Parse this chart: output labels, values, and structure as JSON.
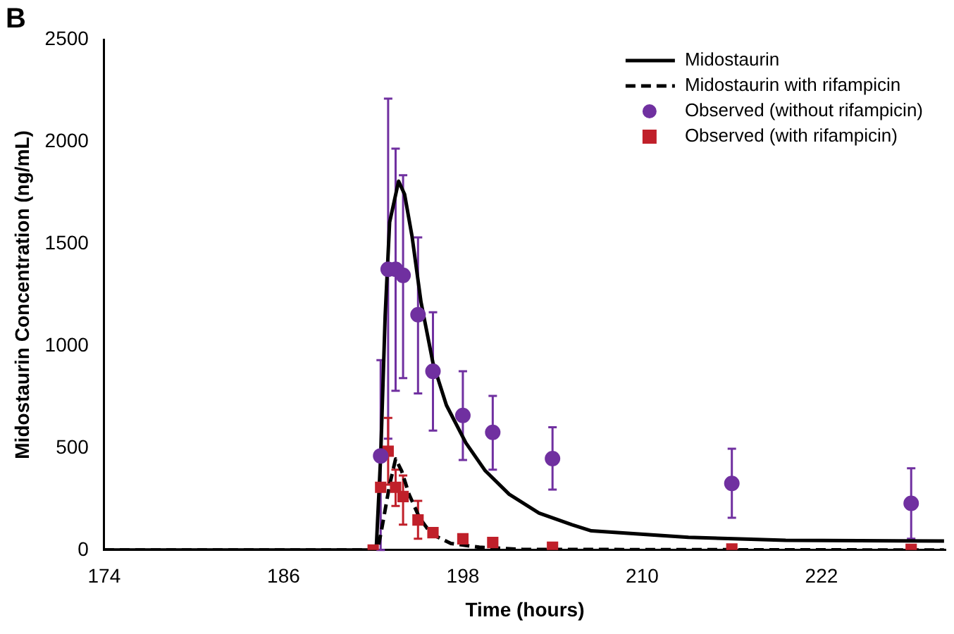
{
  "chart_data": {
    "type": "line",
    "title": "B",
    "xlabel": "Time (hours)",
    "ylabel": "Midostaurin Concentration (ng/mL)",
    "xlim": [
      174,
      230.3
    ],
    "xticks": [
      174,
      186,
      198,
      210,
      222
    ],
    "ylim": [
      0,
      2500
    ],
    "yticks": [
      0,
      500,
      1000,
      1500,
      2000,
      2500
    ],
    "grid": false,
    "legend": "top right",
    "series": [
      {
        "name": "Midostaurin",
        "color": "#000000",
        "line_style": "solid",
        "marker": "none",
        "x": [
          174,
          192.2,
          192.5,
          192.8,
          193.1,
          193.7,
          194.1,
          194.6,
          195.2,
          196.0,
          196.9,
          198.2,
          199.5,
          201.1,
          203.1,
          205.3,
          206.6,
          213.1,
          219.6,
          230.2
        ],
        "values": [
          0,
          0,
          457,
          1145,
          1605,
          1806,
          1742,
          1536,
          1214,
          916,
          709,
          525,
          388,
          273,
          181,
          124,
          94,
          62,
          48,
          44
        ]
      },
      {
        "name": "Midostaurin with rifampicin",
        "color": "#000000",
        "line_style": "dashed",
        "marker": "none",
        "x": [
          174,
          192.3,
          192.6,
          193.1,
          193.5,
          193.9,
          194.4,
          195.1,
          195.9,
          197.2,
          199.1,
          202,
          230.2
        ],
        "values": [
          0,
          0,
          115,
          319,
          446,
          388,
          273,
          158,
          78,
          32,
          14,
          3,
          0
        ]
      },
      {
        "name": "Observed (without rifampicin)",
        "type": "scatter",
        "color": "#7030a0",
        "marker": "circle",
        "x": [
          192.5,
          193,
          193.5,
          194,
          195,
          196,
          198,
          200,
          204,
          216,
          228
        ],
        "values": [
          461,
          1375,
          1375,
          1345,
          1152,
          875,
          659,
          576,
          448,
          326,
          229
        ],
        "errors": [
          [
            0,
            930
          ],
          [
            545,
            2210
          ],
          [
            780,
            1965
          ],
          [
            842,
            1835
          ],
          [
            767,
            1531
          ],
          [
            585,
            1164
          ],
          [
            441,
            875
          ],
          [
            393,
            755
          ],
          [
            296,
            601
          ],
          [
            158,
            496
          ],
          [
            55,
            400
          ]
        ]
      },
      {
        "name": "Observed (with rifampicin)",
        "type": "scatter",
        "color": "#c0202a",
        "marker": "square",
        "x": [
          192,
          192.5,
          193,
          193.5,
          194,
          195,
          196,
          198,
          200,
          204,
          216,
          228
        ],
        "values": [
          0,
          307,
          484,
          307,
          262,
          147,
          85,
          55,
          37,
          14,
          5,
          3
        ],
        "errors": [
          null,
          null,
          [
            320,
            647
          ],
          [
            216,
            393
          ],
          [
            124,
            365
          ],
          [
            55,
            241
          ],
          null,
          null,
          null,
          null,
          null,
          null
        ]
      }
    ]
  }
}
